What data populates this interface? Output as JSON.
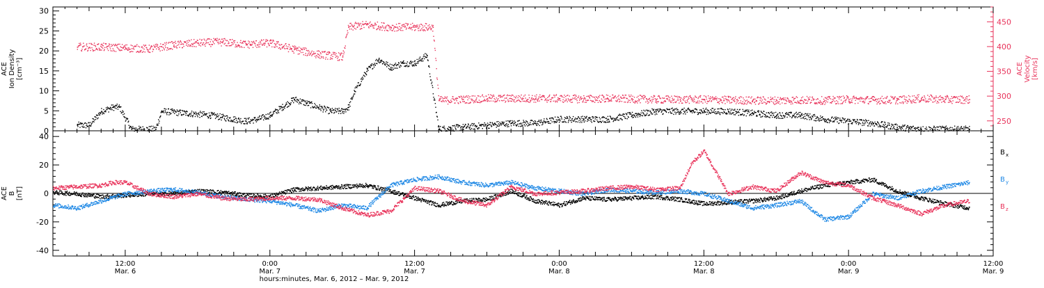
{
  "chart_data": [
    {
      "type": "scatter",
      "panel": "top",
      "ylabel_lines": [
        "ACE",
        "Ion Density",
        "[cm⁻³]"
      ],
      "y2label_lines": [
        "ACE",
        "Velocity",
        "[km/s]"
      ],
      "ylim": [
        0,
        31
      ],
      "y2lim": [
        230,
        480
      ],
      "yticks": [
        0,
        5,
        10,
        15,
        20,
        25,
        30
      ],
      "y2ticks": [
        250,
        300,
        350,
        400,
        450
      ],
      "x_unit": "hours since Mar. 6 00:00",
      "series": [
        {
          "axis": "left",
          "color": "#000000",
          "points": [
            [
              8,
              1.5
            ],
            [
              9,
              1.5
            ],
            [
              10,
              5
            ],
            [
              11,
              6
            ],
            [
              11.5,
              6
            ],
            [
              12.5,
              0.5
            ],
            [
              13.5,
              0.5
            ],
            [
              14.5,
              0.5
            ],
            [
              15,
              5
            ],
            [
              17,
              4.5
            ],
            [
              19,
              4
            ],
            [
              20,
              3.5
            ],
            [
              21,
              3
            ],
            [
              22,
              2.5
            ],
            [
              23,
              3
            ],
            [
              24,
              4
            ],
            [
              25,
              6
            ],
            [
              26,
              8
            ],
            [
              27,
              7
            ],
            [
              28,
              6
            ],
            [
              29,
              5
            ],
            [
              30,
              5
            ],
            [
              30.5,
              6
            ],
            [
              31,
              10
            ],
            [
              32,
              15
            ],
            [
              33,
              18
            ],
            [
              34,
              16
            ],
            [
              35,
              17
            ],
            [
              36,
              17
            ],
            [
              37,
              19
            ],
            [
              38,
              0.5
            ],
            [
              40,
              1
            ],
            [
              42,
              1.5
            ],
            [
              44,
              2
            ],
            [
              46,
              2
            ],
            [
              48,
              3
            ],
            [
              50,
              3
            ],
            [
              52,
              3
            ],
            [
              54,
              4
            ],
            [
              56,
              5
            ],
            [
              58,
              5
            ],
            [
              60,
              5
            ],
            [
              62,
              5
            ],
            [
              64,
              4.5
            ],
            [
              66,
              4
            ],
            [
              68,
              4
            ],
            [
              70,
              3
            ],
            [
              72,
              2.5
            ],
            [
              74,
              2
            ],
            [
              76,
              1
            ],
            [
              78,
              0.5
            ],
            [
              80,
              0.5
            ],
            [
              82,
              0.5
            ]
          ]
        },
        {
          "axis": "right",
          "color": "#e8325a",
          "points": [
            [
              8,
              400
            ],
            [
              10,
              400
            ],
            [
              12,
              398
            ],
            [
              14,
              396
            ],
            [
              16,
              404
            ],
            [
              18,
              408
            ],
            [
              20,
              410
            ],
            [
              22,
              405
            ],
            [
              24,
              408
            ],
            [
              26,
              395
            ],
            [
              28,
              385
            ],
            [
              30,
              380
            ],
            [
              30.5,
              440
            ],
            [
              32,
              445
            ],
            [
              34,
              440
            ],
            [
              36,
              440
            ],
            [
              37.5,
              440
            ],
            [
              38,
              292
            ],
            [
              40,
              294
            ],
            [
              42,
              296
            ],
            [
              44,
              296
            ],
            [
              46,
              296
            ],
            [
              48,
              296
            ],
            [
              50,
              295
            ],
            [
              52,
              296
            ],
            [
              54,
              295
            ],
            [
              56,
              294
            ],
            [
              58,
              294
            ],
            [
              60,
              294
            ],
            [
              62,
              293
            ],
            [
              64,
              292
            ],
            [
              66,
              292
            ],
            [
              68,
              293
            ],
            [
              70,
              292
            ],
            [
              72,
              294
            ],
            [
              74,
              293
            ],
            [
              76,
              293
            ],
            [
              78,
              296
            ],
            [
              80,
              294
            ],
            [
              82,
              294
            ]
          ]
        }
      ]
    },
    {
      "type": "scatter",
      "panel": "bottom",
      "ylabel_lines": [
        "ACE",
        "B",
        "[nT]"
      ],
      "ylim": [
        -44,
        44
      ],
      "yticks": [
        -40,
        -20,
        0,
        20,
        40
      ],
      "x_unit": "hours since Mar. 6 00:00",
      "series": [
        {
          "name": "Bx",
          "legend_label": "B",
          "legend_sub": "x",
          "color": "#000000",
          "points": [
            [
              6,
              1
            ],
            [
              8,
              0
            ],
            [
              10,
              -2
            ],
            [
              12,
              -1
            ],
            [
              14,
              0
            ],
            [
              16,
              0
            ],
            [
              18,
              2
            ],
            [
              20,
              1
            ],
            [
              22,
              -1
            ],
            [
              24,
              -2
            ],
            [
              26,
              3
            ],
            [
              28,
              4
            ],
            [
              30,
              5
            ],
            [
              32,
              6
            ],
            [
              34,
              2
            ],
            [
              36,
              -3
            ],
            [
              38,
              -8
            ],
            [
              40,
              -5
            ],
            [
              42,
              -4
            ],
            [
              44,
              2
            ],
            [
              46,
              -5
            ],
            [
              48,
              -8
            ],
            [
              50,
              -3
            ],
            [
              52,
              -4
            ],
            [
              54,
              -3
            ],
            [
              56,
              -2
            ],
            [
              58,
              -4
            ],
            [
              60,
              -7
            ],
            [
              62,
              -6
            ],
            [
              64,
              -5
            ],
            [
              66,
              -3
            ],
            [
              68,
              2
            ],
            [
              70,
              6
            ],
            [
              72,
              8
            ],
            [
              74,
              10
            ],
            [
              76,
              2
            ],
            [
              78,
              -3
            ],
            [
              80,
              -7
            ],
            [
              82,
              -10
            ]
          ]
        },
        {
          "name": "By",
          "legend_label": "B",
          "legend_sub": "y",
          "color": "#1e88e5",
          "points": [
            [
              6,
              -8
            ],
            [
              8,
              -10
            ],
            [
              10,
              -5
            ],
            [
              12,
              0
            ],
            [
              14,
              2
            ],
            [
              16,
              3
            ],
            [
              18,
              1
            ],
            [
              20,
              -2
            ],
            [
              22,
              -4
            ],
            [
              24,
              -5
            ],
            [
              26,
              -8
            ],
            [
              28,
              -12
            ],
            [
              30,
              -8
            ],
            [
              32,
              -10
            ],
            [
              34,
              6
            ],
            [
              36,
              10
            ],
            [
              38,
              12
            ],
            [
              40,
              8
            ],
            [
              42,
              6
            ],
            [
              44,
              8
            ],
            [
              46,
              4
            ],
            [
              48,
              2
            ],
            [
              50,
              0
            ],
            [
              52,
              3
            ],
            [
              54,
              2
            ],
            [
              56,
              1
            ],
            [
              58,
              2
            ],
            [
              60,
              0
            ],
            [
              62,
              -5
            ],
            [
              64,
              -10
            ],
            [
              66,
              -8
            ],
            [
              68,
              -5
            ],
            [
              70,
              -18
            ],
            [
              72,
              -16
            ],
            [
              74,
              0
            ],
            [
              76,
              -3
            ],
            [
              78,
              2
            ],
            [
              80,
              5
            ],
            [
              82,
              8
            ]
          ]
        },
        {
          "name": "Bz",
          "legend_label": "B",
          "legend_sub": "z",
          "color": "#e8325a",
          "points": [
            [
              6,
              4
            ],
            [
              8,
              5
            ],
            [
              10,
              6
            ],
            [
              11,
              8
            ],
            [
              12,
              8
            ],
            [
              14,
              0
            ],
            [
              16,
              -2
            ],
            [
              18,
              0
            ],
            [
              20,
              -3
            ],
            [
              22,
              -4
            ],
            [
              24,
              -3
            ],
            [
              26,
              -3
            ],
            [
              28,
              -4
            ],
            [
              30,
              -10
            ],
            [
              32,
              -15
            ],
            [
              34,
              -12
            ],
            [
              36,
              4
            ],
            [
              38,
              2
            ],
            [
              40,
              -5
            ],
            [
              42,
              -8
            ],
            [
              44,
              5
            ],
            [
              46,
              0
            ],
            [
              48,
              1
            ],
            [
              50,
              2
            ],
            [
              52,
              4
            ],
            [
              54,
              5
            ],
            [
              56,
              3
            ],
            [
              58,
              4
            ],
            [
              59,
              22
            ],
            [
              60,
              30
            ],
            [
              62,
              0
            ],
            [
              64,
              5
            ],
            [
              66,
              2
            ],
            [
              68,
              15
            ],
            [
              70,
              8
            ],
            [
              72,
              6
            ],
            [
              74,
              -3
            ],
            [
              76,
              -8
            ],
            [
              78,
              -14
            ],
            [
              80,
              -8
            ],
            [
              82,
              -5
            ]
          ]
        }
      ]
    }
  ],
  "xaxis": {
    "range_hours": [
      6,
      84
    ],
    "major_ticks": [
      12,
      24,
      36,
      48,
      60,
      72,
      84
    ],
    "tick_labels": [
      {
        "time": "12:00",
        "date": "Mar. 6"
      },
      {
        "time": "0:00",
        "date": "Mar. 7"
      },
      {
        "time": "12:00",
        "date": "Mar. 7"
      },
      {
        "time": "0:00",
        "date": "Mar. 8"
      },
      {
        "time": "12:00",
        "date": "Mar. 8"
      },
      {
        "time": "0:00",
        "date": "Mar. 9"
      },
      {
        "time": "12:00",
        "date": "Mar. 9"
      }
    ],
    "title": "hours:minutes, Mar. 6, 2012 – Mar. 9, 2012"
  },
  "colors": {
    "axis": "#000000",
    "density": "#000000",
    "velocity": "#e8325a",
    "bx": "#000000",
    "by": "#1e88e5",
    "bz": "#e8325a"
  }
}
